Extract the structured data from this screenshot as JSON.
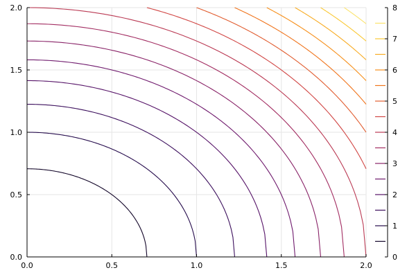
{
  "chart_data": {
    "type": "contour",
    "function": "x^2 + y^2",
    "x_range": [
      0,
      2
    ],
    "y_range": [
      0,
      2
    ],
    "x_ticks": [
      {
        "value": 0.0,
        "label": "0.0"
      },
      {
        "value": 0.5,
        "label": "0.5"
      },
      {
        "value": 1.0,
        "label": "1.0"
      },
      {
        "value": 1.5,
        "label": "1.5"
      },
      {
        "value": 2.0,
        "label": "2.0"
      }
    ],
    "y_ticks": [
      {
        "value": 0.0,
        "label": "0.0"
      },
      {
        "value": 0.5,
        "label": "0.5"
      },
      {
        "value": 1.0,
        "label": "1.0"
      },
      {
        "value": 1.5,
        "label": "1.5"
      },
      {
        "value": 2.0,
        "label": "2.0"
      }
    ],
    "levels": [
      0.5,
      1.0,
      1.5,
      2.0,
      2.5,
      3.0,
      3.5,
      4.0,
      4.5,
      5.0,
      5.5,
      6.0,
      6.5,
      7.0,
      7.5
    ],
    "colorbar": {
      "range": [
        0,
        8
      ],
      "ticks": [
        {
          "value": 0,
          "label": "0"
        },
        {
          "value": 1,
          "label": "1"
        },
        {
          "value": 2,
          "label": "2"
        },
        {
          "value": 3,
          "label": "3"
        },
        {
          "value": 4,
          "label": "4"
        },
        {
          "value": 5,
          "label": "5"
        },
        {
          "value": 6,
          "label": "6"
        },
        {
          "value": 7,
          "label": "7"
        },
        {
          "value": 8,
          "label": "8"
        }
      ],
      "colormap": "inferno"
    },
    "grid": true,
    "legend": "colorbar-right"
  }
}
